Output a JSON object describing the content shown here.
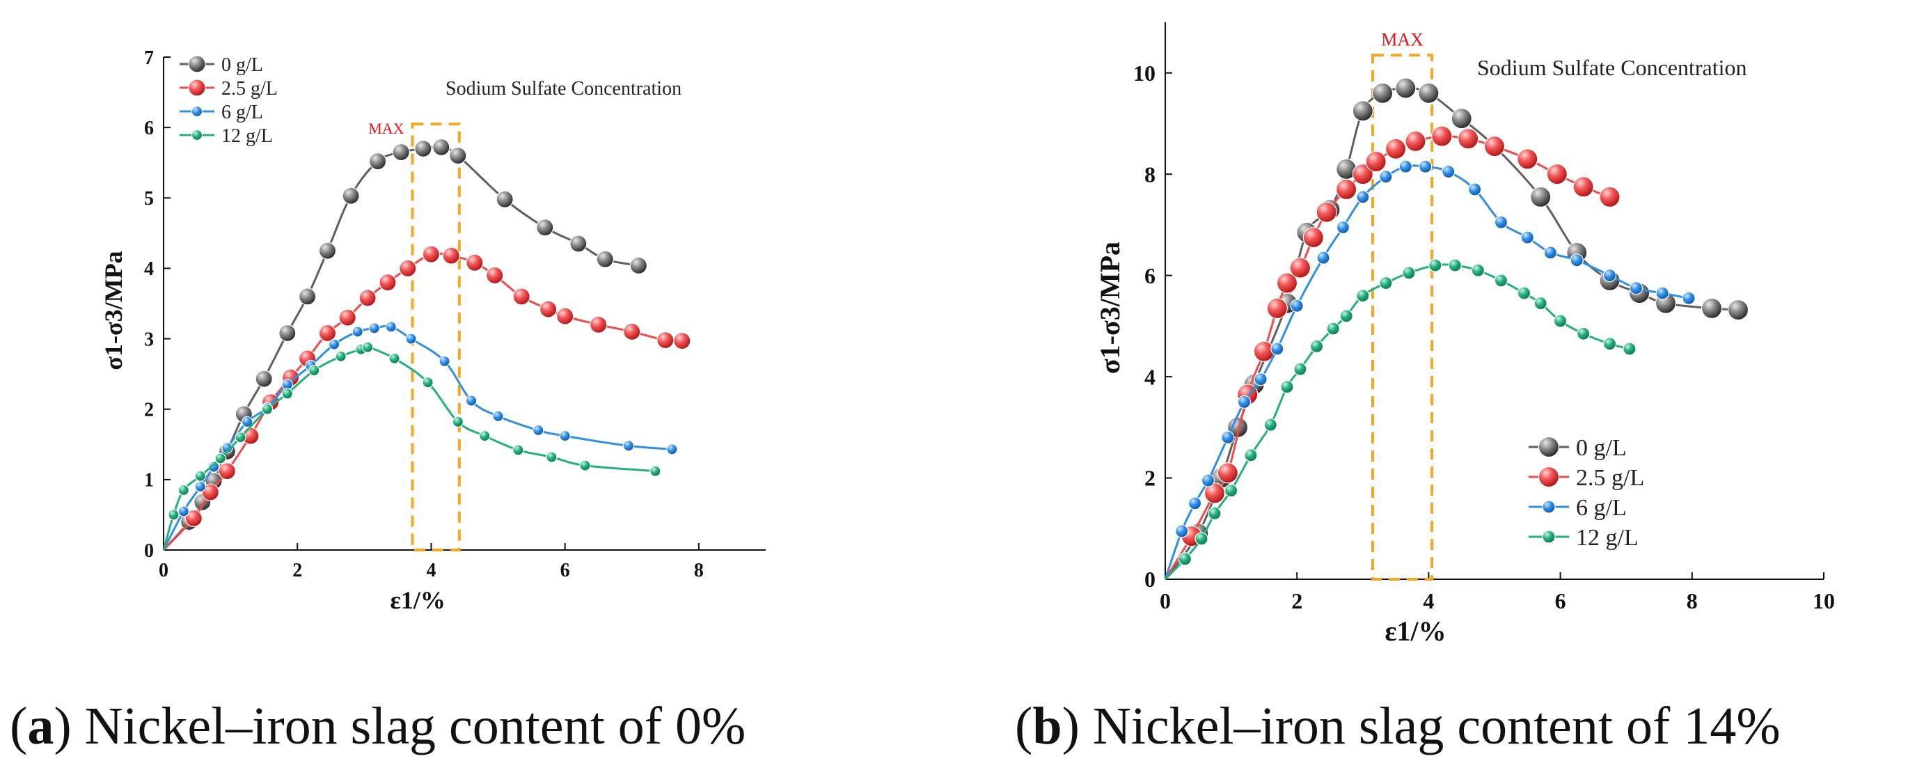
{
  "figure": {
    "captions": [
      {
        "letter": "a",
        "text": "Nickel–iron slag content of 0%"
      },
      {
        "letter": "b",
        "text": "Nickel–iron slag content of 14%"
      }
    ]
  },
  "colors": {
    "s0": "#5f5f5f",
    "s25": "#f04a4a",
    "s6": "#2f8ee6",
    "s12": "#22b07c",
    "max_box": "#f5a623",
    "max_text": "#e8101a",
    "axis": "#111111"
  },
  "chart_data": [
    {
      "type": "line",
      "panel": "a",
      "title": "Sodium Sulfate Concentration",
      "annotation": "MAX",
      "max_range": [
        3.72,
        4.42
      ],
      "max_top": 6.05,
      "xlabel": "ε1/%",
      "ylabel": "σ1-σ3/MPa",
      "xlim": [
        0,
        9
      ],
      "ylim": [
        0,
        7
      ],
      "xticks": [
        0,
        2,
        4,
        6,
        8
      ],
      "yticks": [
        0,
        1,
        2,
        3,
        4,
        5,
        6,
        7
      ],
      "legend_position": "top-left",
      "series": [
        {
          "name": "0 g/L",
          "color_key": "s0",
          "marker": "big",
          "x": [
            0,
            0.38,
            0.58,
            0.75,
            0.95,
            1.2,
            1.5,
            1.85,
            2.15,
            2.45,
            2.8,
            3.2,
            3.55,
            3.88,
            4.15,
            4.4,
            5.1,
            5.7,
            6.2,
            6.6,
            7.1
          ],
          "y": [
            0,
            0.4,
            0.68,
            0.98,
            1.4,
            1.93,
            2.43,
            3.08,
            3.6,
            4.25,
            5.03,
            5.52,
            5.65,
            5.7,
            5.72,
            5.6,
            4.98,
            4.58,
            4.35,
            4.13,
            4.04
          ]
        },
        {
          "name": "2.5 g/L",
          "color_key": "s25",
          "marker": "big",
          "x": [
            0,
            0.45,
            0.7,
            0.95,
            1.3,
            1.6,
            1.9,
            2.15,
            2.45,
            2.75,
            3.05,
            3.35,
            3.65,
            4.0,
            4.3,
            4.65,
            4.95,
            5.35,
            5.75,
            6.0,
            6.5,
            7.0,
            7.5,
            7.75
          ],
          "y": [
            0,
            0.45,
            0.82,
            1.12,
            1.62,
            2.1,
            2.45,
            2.72,
            3.08,
            3.3,
            3.58,
            3.8,
            4.0,
            4.2,
            4.18,
            4.08,
            3.9,
            3.6,
            3.42,
            3.32,
            3.2,
            3.1,
            2.98,
            2.97
          ]
        },
        {
          "name": "6 g/L",
          "color_key": "s6",
          "marker": "small",
          "x": [
            0,
            0.3,
            0.55,
            0.75,
            0.95,
            1.25,
            1.55,
            1.85,
            2.2,
            2.55,
            2.9,
            3.15,
            3.4,
            3.7,
            4.2,
            4.6,
            5.0,
            5.6,
            6.0,
            6.95,
            7.6
          ],
          "y": [
            0,
            0.55,
            0.9,
            1.18,
            1.45,
            1.82,
            2.02,
            2.35,
            2.62,
            2.92,
            3.1,
            3.15,
            3.17,
            3.0,
            2.68,
            2.12,
            1.9,
            1.7,
            1.62,
            1.48,
            1.43
          ]
        },
        {
          "name": "12 g/L",
          "color_key": "s12",
          "marker": "small",
          "x": [
            0,
            0.15,
            0.3,
            0.55,
            0.85,
            1.15,
            1.55,
            1.85,
            2.25,
            2.65,
            2.95,
            3.05,
            3.45,
            3.95,
            4.4,
            4.8,
            5.3,
            5.8,
            6.3,
            7.35
          ],
          "y": [
            0,
            0.5,
            0.85,
            1.05,
            1.3,
            1.6,
            2.0,
            2.22,
            2.55,
            2.75,
            2.85,
            2.88,
            2.72,
            2.38,
            1.82,
            1.62,
            1.42,
            1.32,
            1.2,
            1.12
          ]
        }
      ]
    },
    {
      "type": "line",
      "panel": "b",
      "title": "Sodium Sulfate Concentration",
      "annotation": "MAX",
      "max_range": [
        3.15,
        4.05
      ],
      "max_top": 10.35,
      "xlabel": "ε1/%",
      "ylabel": "σ1-σ3/MPa",
      "xlim": [
        0,
        10
      ],
      "ylim": [
        0,
        11
      ],
      "xticks": [
        0,
        2,
        4,
        6,
        8,
        10
      ],
      "yticks": [
        0,
        2,
        4,
        6,
        8,
        10
      ],
      "legend_position": "bottom-right",
      "series": [
        {
          "name": "0 g/L",
          "color_key": "s0",
          "marker": "big",
          "x": [
            0,
            0.5,
            0.85,
            1.1,
            1.35,
            1.85,
            2.15,
            2.5,
            2.75,
            3.0,
            3.3,
            3.65,
            4.0,
            4.5,
            5.0,
            5.7,
            6.25,
            6.75,
            7.2,
            7.6,
            8.3,
            8.7
          ],
          "y": [
            0,
            0.9,
            2.0,
            3.0,
            3.85,
            5.45,
            6.85,
            7.3,
            8.1,
            9.25,
            9.6,
            9.7,
            9.6,
            9.1,
            8.55,
            7.55,
            6.45,
            5.9,
            5.65,
            5.45,
            5.35,
            5.32
          ]
        },
        {
          "name": "2.5 g/L",
          "color_key": "s25",
          "marker": "big",
          "x": [
            0,
            0.4,
            0.75,
            0.95,
            1.25,
            1.5,
            1.7,
            1.85,
            2.05,
            2.25,
            2.45,
            2.75,
            3.0,
            3.2,
            3.5,
            3.8,
            4.2,
            4.6,
            5.0,
            5.5,
            5.95,
            6.35,
            6.75
          ],
          "y": [
            0,
            0.85,
            1.7,
            2.1,
            3.65,
            4.5,
            5.35,
            5.85,
            6.15,
            6.75,
            7.25,
            7.7,
            8.0,
            8.25,
            8.5,
            8.65,
            8.75,
            8.7,
            8.55,
            8.3,
            8.0,
            7.75,
            7.55
          ]
        },
        {
          "name": "6 g/L",
          "color_key": "s6",
          "marker": "small",
          "x": [
            0,
            0.25,
            0.45,
            0.65,
            0.95,
            1.2,
            1.45,
            1.7,
            2.0,
            2.4,
            2.7,
            3.0,
            3.35,
            3.65,
            3.95,
            4.3,
            4.7,
            5.1,
            5.5,
            5.85,
            6.25,
            6.75,
            7.15,
            7.55,
            7.95
          ],
          "y": [
            0,
            0.95,
            1.5,
            1.95,
            2.8,
            3.5,
            3.95,
            4.55,
            5.4,
            6.35,
            6.95,
            7.55,
            7.95,
            8.15,
            8.15,
            8.05,
            7.7,
            7.05,
            6.75,
            6.45,
            6.3,
            6.0,
            5.75,
            5.65,
            5.55
          ]
        },
        {
          "name": "12 g/L",
          "color_key": "s12",
          "marker": "small",
          "x": [
            0,
            0.3,
            0.55,
            0.75,
            1.0,
            1.3,
            1.6,
            1.85,
            2.05,
            2.3,
            2.55,
            2.75,
            3.0,
            3.35,
            3.7,
            4.1,
            4.4,
            4.75,
            5.1,
            5.45,
            5.7,
            6.0,
            6.35,
            6.75,
            7.05
          ],
          "y": [
            0,
            0.4,
            0.8,
            1.3,
            1.75,
            2.45,
            3.05,
            3.8,
            4.15,
            4.6,
            4.95,
            5.2,
            5.6,
            5.85,
            6.05,
            6.2,
            6.2,
            6.1,
            5.9,
            5.65,
            5.45,
            5.1,
            4.85,
            4.65,
            4.55
          ]
        }
      ]
    }
  ]
}
